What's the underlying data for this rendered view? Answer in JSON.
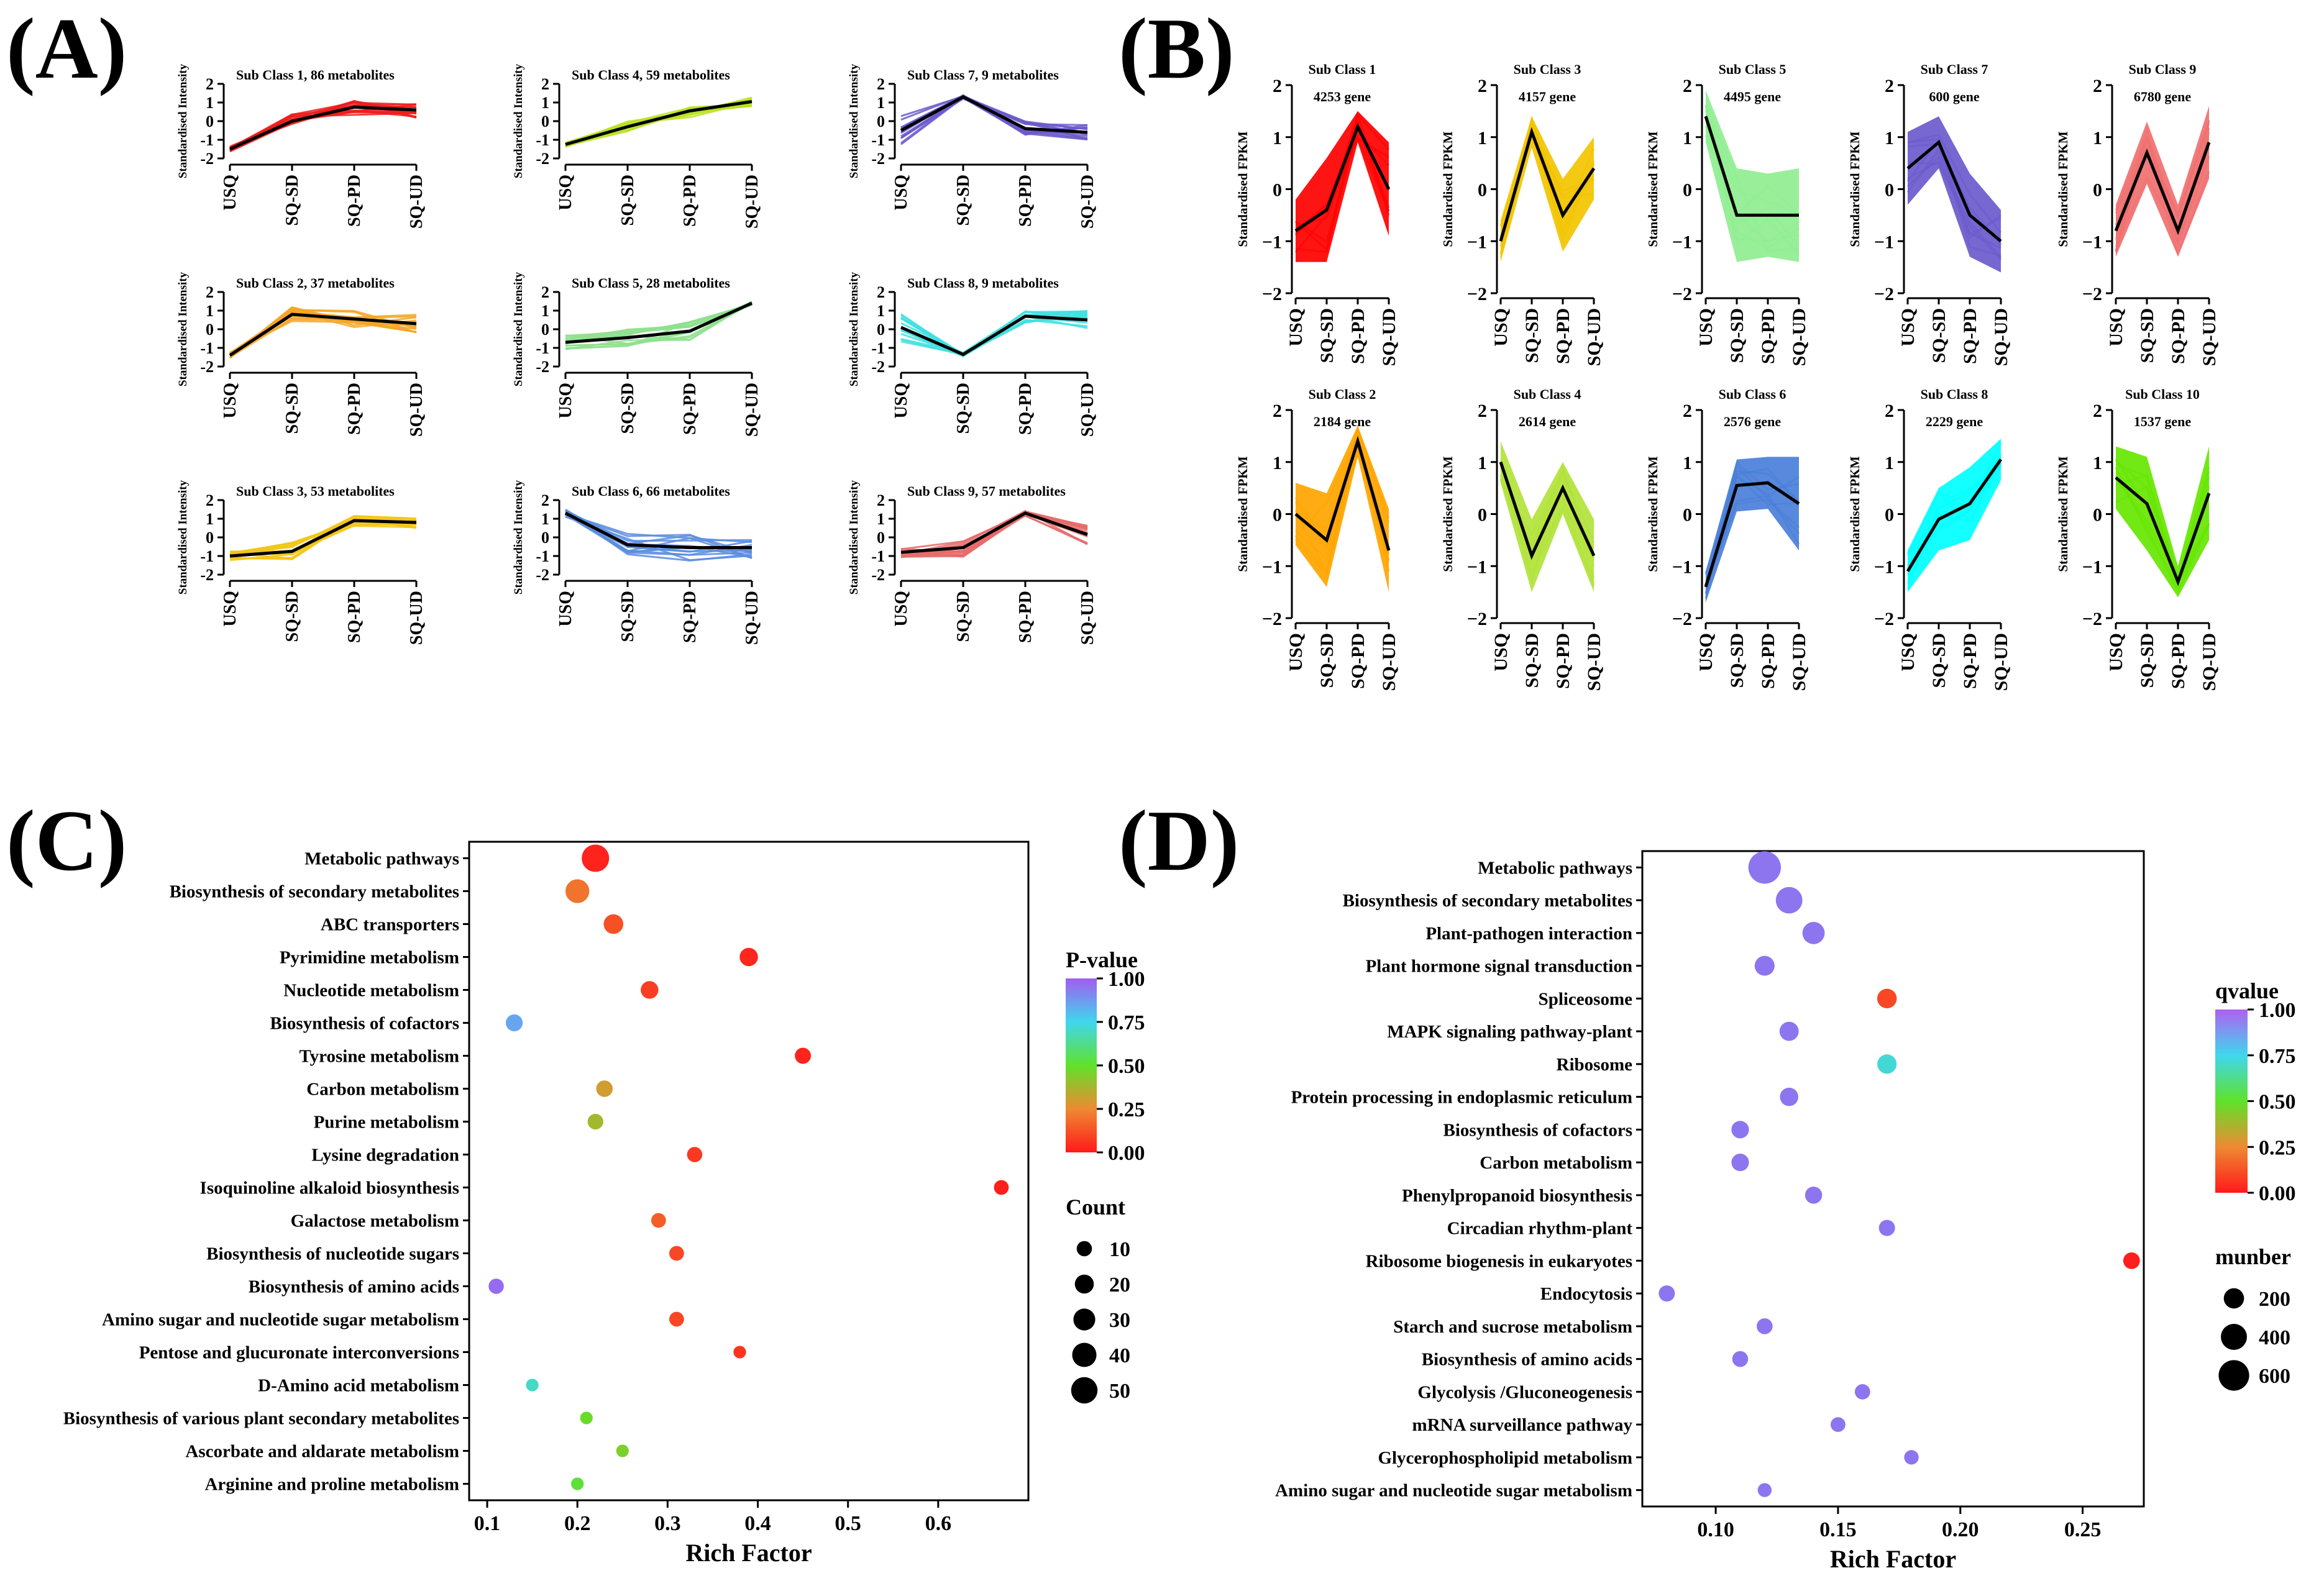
{
  "panel_labels": [
    "(A)",
    "(B)",
    "(C)",
    "(D)"
  ],
  "chart_data": [
    {
      "id": "A",
      "type": "line",
      "ylabel": "Standardised Intensity",
      "categories": [
        "USQ",
        "SQ-SD",
        "SQ-PD",
        "SQ-UD"
      ],
      "ylim": [
        -2,
        2
      ],
      "yticks": [
        -2,
        -1,
        0,
        1,
        2
      ],
      "subplots": [
        {
          "title": "Sub Class 1, 86 metabolites",
          "color": "#ee1c1c",
          "mean": [
            -1.5,
            0.0,
            0.75,
            0.6
          ],
          "spread": [
            0.15,
            0.45,
            0.45,
            0.45
          ]
        },
        {
          "title": "Sub Class 4, 59 metabolites",
          "color": "#b8e21f",
          "mean": [
            -1.25,
            -0.3,
            0.55,
            1.05
          ],
          "spread": [
            0.15,
            0.3,
            0.35,
            0.25
          ]
        },
        {
          "title": "Sub Class 7, 9 metabolites",
          "color": "#6a5acd",
          "mean": [
            -0.5,
            1.3,
            -0.4,
            -0.6
          ],
          "spread": [
            0.8,
            0.1,
            0.4,
            0.4
          ]
        },
        {
          "title": "Sub Class 2, 37 metabolites",
          "color": "#f5a623",
          "mean": [
            -1.4,
            0.8,
            0.55,
            0.3
          ],
          "spread": [
            0.15,
            0.4,
            0.45,
            0.5
          ]
        },
        {
          "title": "Sub Class 5, 28 metabolites",
          "color": "#8ee08e",
          "mean": [
            -0.7,
            -0.45,
            -0.1,
            1.4
          ],
          "spread": [
            0.4,
            0.45,
            0.5,
            0.1
          ]
        },
        {
          "title": "Sub Class 8, 9 metabolites",
          "color": "#3fe0e0",
          "mean": [
            0.1,
            -1.35,
            0.7,
            0.5
          ],
          "spread": [
            0.8,
            0.1,
            0.4,
            0.5
          ]
        },
        {
          "title": "Sub Class 3, 53 metabolites",
          "color": "#f2c614",
          "mean": [
            -1.0,
            -0.75,
            0.9,
            0.8
          ],
          "spread": [
            0.3,
            0.5,
            0.3,
            0.3
          ]
        },
        {
          "title": "Sub Class 6, 66 metabolites",
          "color": "#5b8de0",
          "mean": [
            1.3,
            -0.4,
            -0.55,
            -0.55
          ],
          "spread": [
            0.2,
            0.6,
            0.7,
            0.6
          ]
        },
        {
          "title": "Sub Class 9, 57 metabolites",
          "color": "#e66b6b",
          "mean": [
            -0.8,
            -0.55,
            1.3,
            0.15
          ],
          "spread": [
            0.3,
            0.5,
            0.15,
            0.6
          ]
        }
      ]
    },
    {
      "id": "B",
      "type": "line",
      "ylabel": "Standardised FPKM",
      "categories": [
        "USQ",
        "SQ-SD",
        "SQ-PD",
        "SQ-UD"
      ],
      "ylim": [
        -2,
        2
      ],
      "yticks": [
        -2,
        -1,
        0,
        1,
        2
      ],
      "subplots": [
        {
          "title": "Sub Class 1",
          "subtitle": "4253 gene",
          "color": "#ff0000",
          "mean": [
            -0.8,
            -0.4,
            1.2,
            0.0
          ],
          "spread": [
            0.6,
            1.0,
            0.3,
            0.9
          ]
        },
        {
          "title": "Sub Class 3",
          "subtitle": "4157 gene",
          "color": "#f2c400",
          "mean": [
            -1.0,
            1.1,
            -0.5,
            0.4
          ],
          "spread": [
            0.4,
            0.3,
            0.7,
            0.6
          ]
        },
        {
          "title": "Sub Class 5",
          "subtitle": "4495 gene",
          "color": "#90ee90",
          "mean": [
            1.4,
            -0.5,
            -0.5,
            -0.5
          ],
          "spread": [
            0.5,
            0.9,
            0.8,
            0.9
          ]
        },
        {
          "title": "Sub Class 7",
          "subtitle": "600 gene",
          "color": "#6a5acd",
          "mean": [
            0.4,
            0.9,
            -0.5,
            -1.0
          ],
          "spread": [
            0.7,
            0.5,
            0.8,
            0.6
          ]
        },
        {
          "title": "Sub Class 9",
          "subtitle": "6780 gene",
          "color": "#f07070",
          "mean": [
            -0.8,
            0.7,
            -0.8,
            0.9
          ],
          "spread": [
            0.5,
            0.6,
            0.5,
            0.7
          ]
        },
        {
          "title": "Sub Class 2",
          "subtitle": "2184 gene",
          "color": "#ffa500",
          "mean": [
            0.0,
            -0.5,
            1.4,
            -0.7
          ],
          "spread": [
            0.6,
            0.9,
            0.3,
            0.8
          ]
        },
        {
          "title": "Sub Class 4",
          "subtitle": "2614 gene",
          "color": "#b2e33a",
          "mean": [
            1.0,
            -0.8,
            0.5,
            -0.8
          ],
          "spread": [
            0.4,
            0.7,
            0.5,
            0.7
          ]
        },
        {
          "title": "Sub Class 6",
          "subtitle": "2576 gene",
          "color": "#4a7fd9",
          "mean": [
            -1.4,
            0.55,
            0.6,
            0.2
          ],
          "spread": [
            0.3,
            0.5,
            0.5,
            0.9
          ]
        },
        {
          "title": "Sub Class 8",
          "subtitle": "2229 gene",
          "color": "#00ffff",
          "mean": [
            -1.1,
            -0.1,
            0.2,
            1.05
          ],
          "spread": [
            0.4,
            0.6,
            0.7,
            0.4
          ]
        },
        {
          "title": "Sub Class 10",
          "subtitle": "1537 gene",
          "color": "#66e600",
          "mean": [
            0.7,
            0.2,
            -1.3,
            0.4
          ],
          "spread": [
            0.6,
            0.9,
            0.3,
            0.9
          ]
        }
      ]
    },
    {
      "id": "C",
      "type": "scatter",
      "xlabel": "Rich Factor",
      "xlim": [
        0.08,
        0.7
      ],
      "xticks": [
        0.1,
        0.2,
        0.3,
        0.4,
        0.5,
        0.6
      ],
      "xtick_labels": [
        "0.1",
        "0.2",
        "0.3",
        "0.4",
        "0.5",
        "0.6"
      ],
      "color_legend": {
        "title": "P-value",
        "ticks": [
          "1.00",
          "0.75",
          "0.50",
          "0.25",
          "0.00"
        ],
        "tick_values": [
          1.0,
          0.75,
          0.5,
          0.25,
          0.0
        ]
      },
      "size_legend": {
        "title": "Count",
        "labels": [
          "10",
          "20",
          "30",
          "40",
          "50"
        ],
        "values": [
          10,
          20,
          30,
          40,
          50
        ]
      },
      "points": [
        {
          "pathway": "Metabolic pathways",
          "rich_factor": 0.22,
          "pvalue": 0.02,
          "count": 55
        },
        {
          "pathway": "Biosynthesis of secondary metabolites",
          "rich_factor": 0.2,
          "pvalue": 0.2,
          "count": 38
        },
        {
          "pathway": "ABC transporters",
          "rich_factor": 0.24,
          "pvalue": 0.12,
          "count": 22
        },
        {
          "pathway": "Pyrimidine metabolism",
          "rich_factor": 0.39,
          "pvalue": 0.03,
          "count": 18
        },
        {
          "pathway": "Nucleotide metabolism",
          "rich_factor": 0.28,
          "pvalue": 0.08,
          "count": 16
        },
        {
          "pathway": "Biosynthesis of cofactors",
          "rich_factor": 0.13,
          "pvalue": 0.85,
          "count": 14
        },
        {
          "pathway": "Tyrosine metabolism",
          "rich_factor": 0.45,
          "pvalue": 0.02,
          "count": 12
        },
        {
          "pathway": "Carbon metabolism",
          "rich_factor": 0.23,
          "pvalue": 0.3,
          "count": 13
        },
        {
          "pathway": "Purine metabolism",
          "rich_factor": 0.22,
          "pvalue": 0.38,
          "count": 11
        },
        {
          "pathway": "Lysine degradation",
          "rich_factor": 0.33,
          "pvalue": 0.07,
          "count": 10
        },
        {
          "pathway": "Isoquinoline alkaloid biosynthesis",
          "rich_factor": 0.67,
          "pvalue": 0.01,
          "count": 9
        },
        {
          "pathway": "Galactose metabolism",
          "rich_factor": 0.29,
          "pvalue": 0.15,
          "count": 9
        },
        {
          "pathway": "Biosynthesis of nucleotide sugars",
          "rich_factor": 0.31,
          "pvalue": 0.1,
          "count": 9
        },
        {
          "pathway": "Biosynthesis of amino acids",
          "rich_factor": 0.11,
          "pvalue": 0.97,
          "count": 10
        },
        {
          "pathway": "Amino sugar and nucleotide sugar metabolism",
          "rich_factor": 0.31,
          "pvalue": 0.1,
          "count": 9
        },
        {
          "pathway": "Pentose and glucuronate interconversions",
          "rich_factor": 0.38,
          "pvalue": 0.06,
          "count": 5
        },
        {
          "pathway": "D-Amino acid metabolism",
          "rich_factor": 0.15,
          "pvalue": 0.7,
          "count": 5
        },
        {
          "pathway": "Biosynthesis of various plant secondary metabolites",
          "rich_factor": 0.21,
          "pvalue": 0.48,
          "count": 5
        },
        {
          "pathway": "Ascorbate and aldarate metabolism",
          "rich_factor": 0.25,
          "pvalue": 0.45,
          "count": 5
        },
        {
          "pathway": "Arginine and proline metabolism",
          "rich_factor": 0.2,
          "pvalue": 0.52,
          "count": 5
        }
      ]
    },
    {
      "id": "D",
      "type": "scatter",
      "xlabel": "Rich Factor",
      "xlim": [
        0.07,
        0.275
      ],
      "xticks": [
        0.1,
        0.15,
        0.2,
        0.25
      ],
      "xtick_labels": [
        "0.10",
        "0.15",
        "0.20",
        "0.25"
      ],
      "color_legend": {
        "title": "qvalue",
        "ticks": [
          "1.00",
          "0.75",
          "0.50",
          "0.25",
          "0.00"
        ],
        "tick_values": [
          1.0,
          0.75,
          0.5,
          0.25,
          0.0
        ]
      },
      "size_legend": {
        "title": "munber",
        "labels": [
          "200",
          "400",
          "600"
        ],
        "values": [
          200,
          400,
          600
        ]
      },
      "points": [
        {
          "pathway": "Metabolic pathways",
          "rich_factor": 0.12,
          "qvalue": 0.95,
          "number": 700
        },
        {
          "pathway": "Biosynthesis of secondary metabolites",
          "rich_factor": 0.13,
          "qvalue": 0.95,
          "number": 420
        },
        {
          "pathway": "Plant-pathogen interaction",
          "rich_factor": 0.14,
          "qvalue": 0.95,
          "number": 260
        },
        {
          "pathway": "Plant hormone signal transduction",
          "rich_factor": 0.12,
          "qvalue": 0.95,
          "number": 190
        },
        {
          "pathway": "Spliceosome",
          "rich_factor": 0.17,
          "qvalue": 0.1,
          "number": 180
        },
        {
          "pathway": "MAPK signaling pathway-plant",
          "rich_factor": 0.13,
          "qvalue": 0.95,
          "number": 170
        },
        {
          "pathway": "Ribosome",
          "rich_factor": 0.17,
          "qvalue": 0.72,
          "number": 175
        },
        {
          "pathway": "Protein processing in endoplasmic reticulum",
          "rich_factor": 0.13,
          "qvalue": 0.95,
          "number": 150
        },
        {
          "pathway": "Biosynthesis of cofactors",
          "rich_factor": 0.11,
          "qvalue": 0.95,
          "number": 130
        },
        {
          "pathway": "Carbon metabolism",
          "rich_factor": 0.11,
          "qvalue": 0.95,
          "number": 130
        },
        {
          "pathway": "Phenylpropanoid biosynthesis",
          "rich_factor": 0.14,
          "qvalue": 0.95,
          "number": 120
        },
        {
          "pathway": "Circadian rhythm-plant",
          "rich_factor": 0.17,
          "qvalue": 0.95,
          "number": 100
        },
        {
          "pathway": "Ribosome biogenesis in eukaryotes",
          "rich_factor": 0.27,
          "qvalue": 0.01,
          "number": 110
        },
        {
          "pathway": "Endocytosis",
          "rich_factor": 0.08,
          "qvalue": 0.95,
          "number": 100
        },
        {
          "pathway": "Starch and sucrose metabolism",
          "rich_factor": 0.12,
          "qvalue": 0.95,
          "number": 95
        },
        {
          "pathway": "Biosynthesis of amino acids",
          "rich_factor": 0.11,
          "qvalue": 0.95,
          "number": 95
        },
        {
          "pathway": "Glycolysis /Gluconeogenesis",
          "rich_factor": 0.16,
          "qvalue": 0.95,
          "number": 85
        },
        {
          "pathway": "mRNA surveillance pathway",
          "rich_factor": 0.15,
          "qvalue": 0.95,
          "number": 75
        },
        {
          "pathway": "Glycerophospholipid metabolism",
          "rich_factor": 0.18,
          "qvalue": 0.95,
          "number": 70
        },
        {
          "pathway": "Amino sugar and nucleotide sugar metabolism",
          "rich_factor": 0.12,
          "qvalue": 0.95,
          "number": 60
        }
      ]
    }
  ]
}
